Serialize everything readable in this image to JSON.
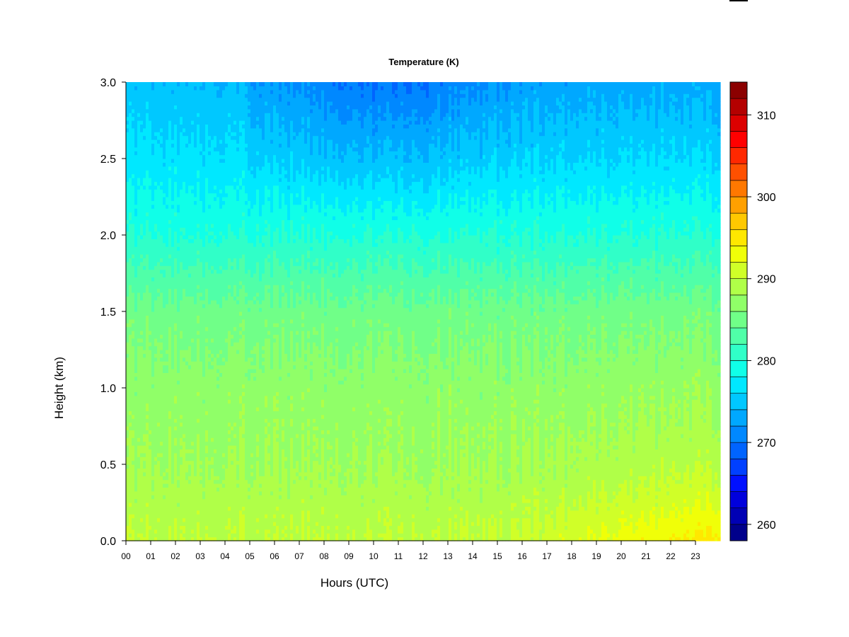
{
  "chart_data": {
    "type": "heatmap",
    "title": "Temperature (K)",
    "xlabel": "Hours (UTC)",
    "ylabel": "Height (km)",
    "x_ticks": [
      "00",
      "01",
      "02",
      "03",
      "04",
      "05",
      "06",
      "07",
      "08",
      "09",
      "10",
      "11",
      "12",
      "13",
      "14",
      "15",
      "16",
      "17",
      "18",
      "19",
      "20",
      "21",
      "22",
      "23"
    ],
    "xlim": [
      0,
      24
    ],
    "y_ticks": [
      "0.0",
      "0.5",
      "1.0",
      "1.5",
      "2.0",
      "2.5",
      "3.0"
    ],
    "ylim": [
      0,
      3
    ],
    "colorbar": {
      "ticks": [
        "260",
        "270",
        "280",
        "290",
        "300",
        "310"
      ],
      "range": [
        258,
        314
      ],
      "levels": 28,
      "colors": [
        "#00008b",
        "#0000b4",
        "#0000dc",
        "#0010ff",
        "#0040ff",
        "#0064ff",
        "#0088ff",
        "#00a8ff",
        "#00c8ff",
        "#00e8ff",
        "#10ffe8",
        "#30ffc8",
        "#50ffa8",
        "#70ff88",
        "#90ff68",
        "#b0ff48",
        "#d0ff28",
        "#f0ff08",
        "#ffe800",
        "#ffc800",
        "#ffa000",
        "#ff7800",
        "#ff5000",
        "#ff2800",
        "#ff0000",
        "#dc0000",
        "#b40000",
        "#8b0000"
      ]
    },
    "grid": false,
    "temperature_profile": [
      {
        "height_km": 0.0,
        "value_K": 290
      },
      {
        "height_km": 0.5,
        "value_K": 288
      },
      {
        "height_km": 1.0,
        "value_K": 287
      },
      {
        "height_km": 1.5,
        "value_K": 285
      },
      {
        "height_km": 2.0,
        "value_K": 280
      },
      {
        "height_km": 2.5,
        "value_K": 276
      },
      {
        "height_km": 3.0,
        "value_K": 273
      }
    ]
  }
}
